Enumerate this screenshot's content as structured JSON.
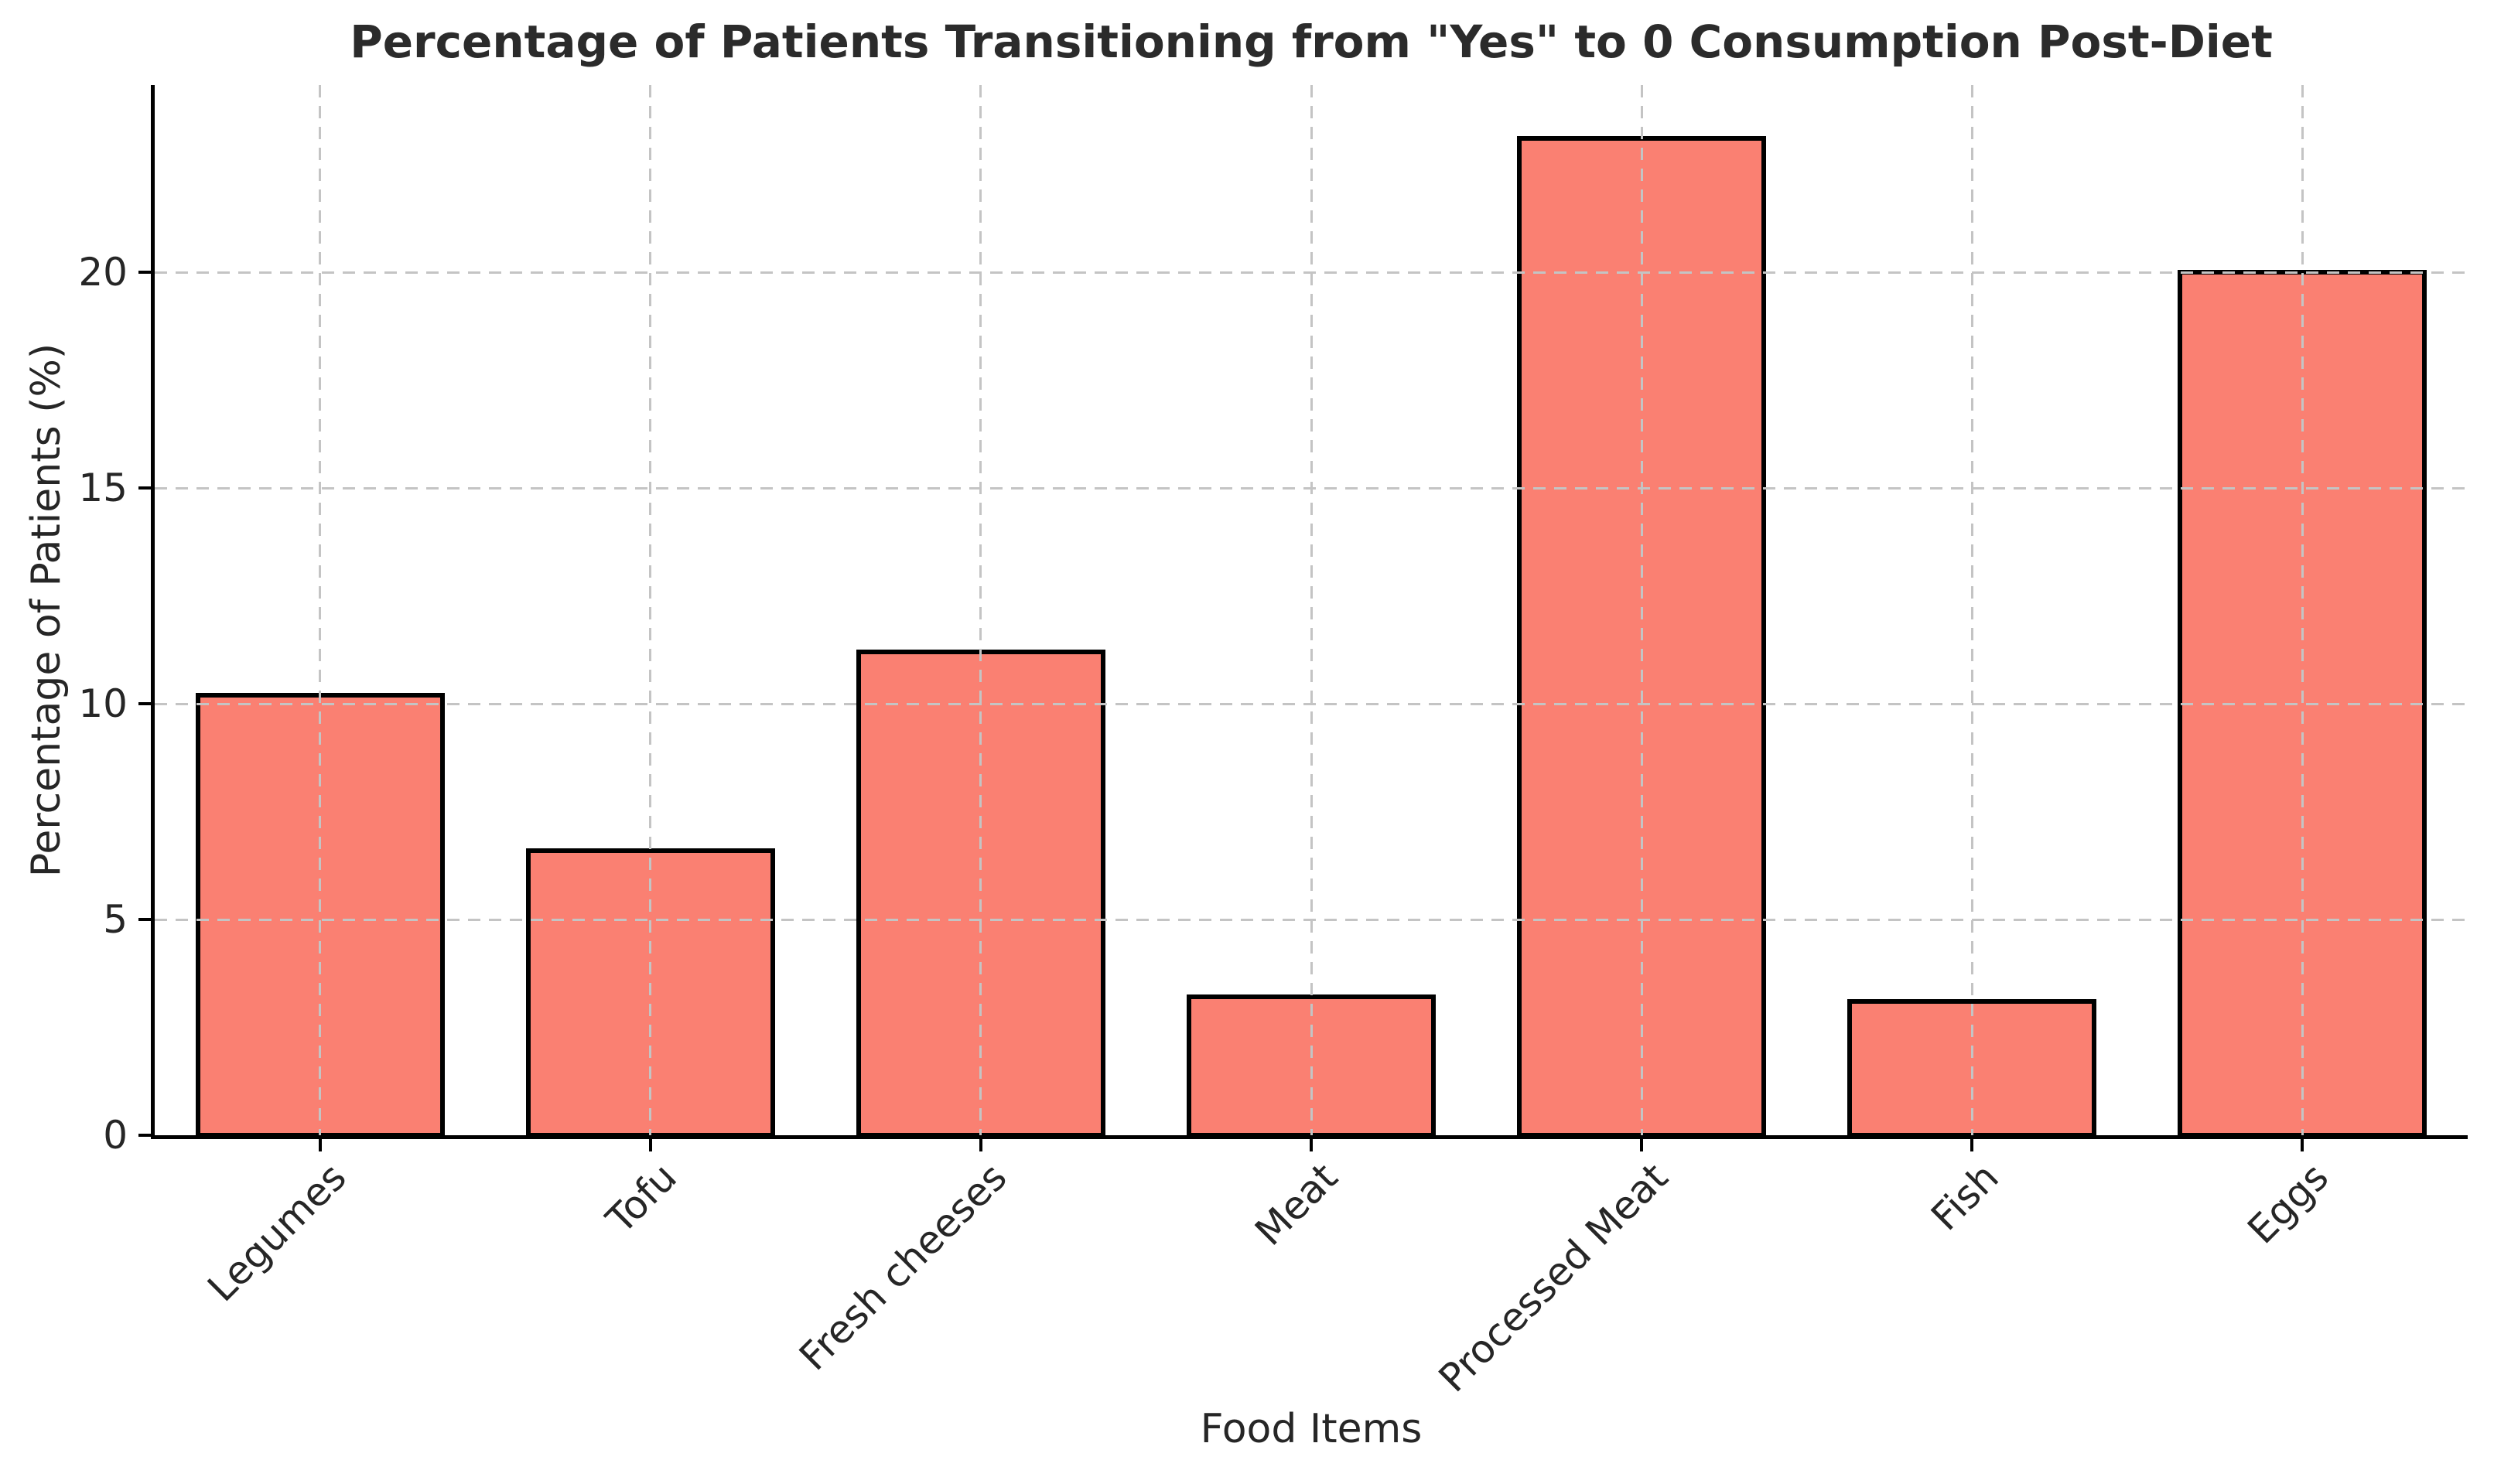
{
  "figure": {
    "background": "#ffffff",
    "text_color": "#262626"
  },
  "chart_data": {
    "type": "bar",
    "title": "Percentage of Patients Transitioning from \"Yes\" to 0 Consumption Post-Diet",
    "xlabel": "Food Items",
    "ylabel": "Percentage of Patients (%)",
    "categories": [
      "Legumes",
      "Tofu",
      "Fresh cheeses",
      "Meat",
      "Processed Meat",
      "Fish",
      "Eggs"
    ],
    "values": [
      10.2,
      6.6,
      11.2,
      3.2,
      23.1,
      3.1,
      20.0
    ],
    "yticks": [
      0,
      5,
      10,
      15,
      20
    ],
    "ylim": [
      0,
      24.34
    ],
    "xtick_rotation": 45,
    "bar_color": "#fa8072",
    "bar_edge_color": "#000000",
    "grid": "dashed gridlines on both axes, drawn above bars",
    "grid_color": "#c4c4c4",
    "legend": "none"
  }
}
